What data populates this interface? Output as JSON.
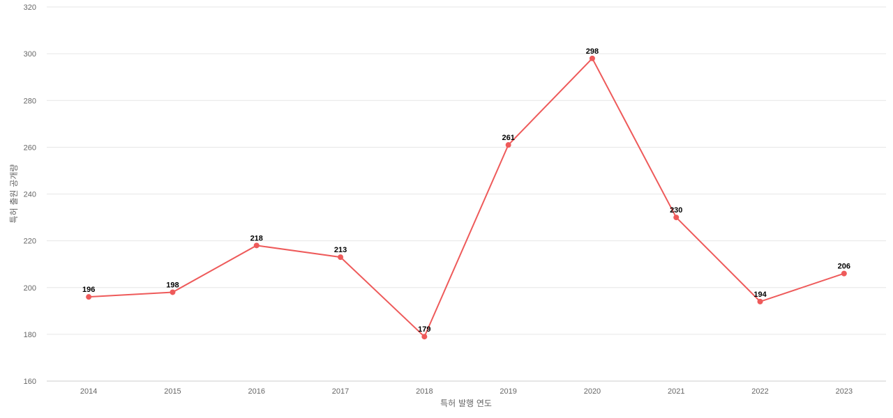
{
  "chart_data": {
    "type": "line",
    "title": "",
    "xlabel": "특허 발행 연도",
    "ylabel": "특허 출원 공개량",
    "categories": [
      "2014",
      "2015",
      "2016",
      "2017",
      "2018",
      "2019",
      "2020",
      "2021",
      "2022",
      "2023"
    ],
    "series": [
      {
        "values": [
          196,
          198,
          218,
          213,
          179,
          261,
          298,
          230,
          194,
          206
        ],
        "color": "#ee5a5a"
      }
    ],
    "ylim": [
      160,
      320
    ],
    "yticks": [
      160,
      180,
      200,
      220,
      240,
      260,
      280,
      300,
      320
    ],
    "grid": true,
    "legend": "none",
    "colors": {
      "line": "#ee5a5a",
      "grid": "#e6e6e6",
      "axis": "#cccccc",
      "tick_text": "#666666",
      "data_label": "#000000"
    }
  }
}
